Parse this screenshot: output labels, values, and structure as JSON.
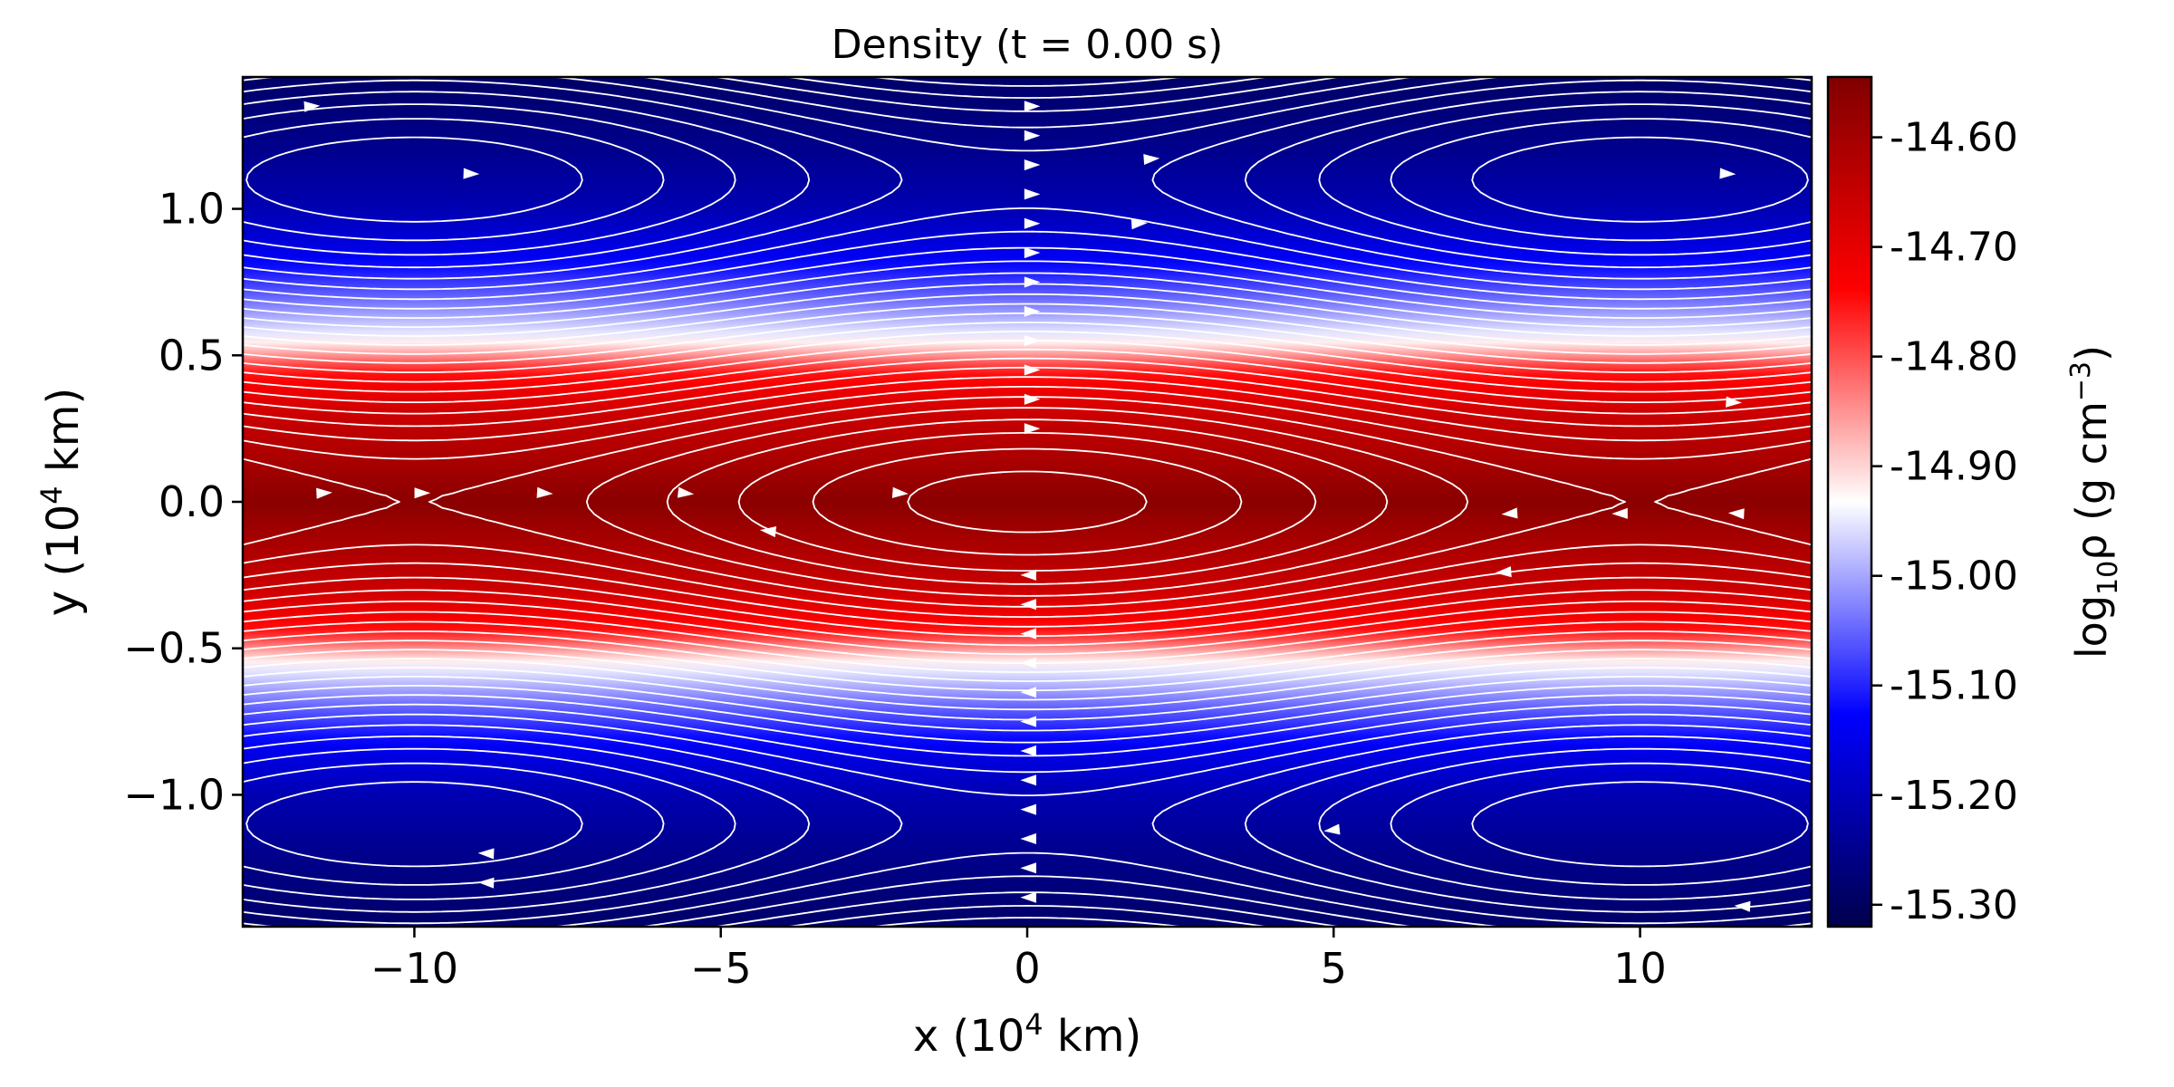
{
  "chart_data": {
    "type": "heatmap",
    "title": "Density (t = 0.00 s)",
    "xlabel": {
      "prefix": "x (10",
      "sup": "4",
      "suffix": " km)"
    },
    "ylabel": {
      "prefix": "y (10",
      "sup": "4",
      "suffix": " km)"
    },
    "colorbar_label": {
      "a": "log",
      "sub": "10",
      "b": "ρ (g cm",
      "sup": "−3",
      "c": ")"
    },
    "xlim": [
      -12.8,
      12.8
    ],
    "ylim": [
      -1.45,
      1.45
    ],
    "x_ticks": [
      {
        "value": -10,
        "label": "−10"
      },
      {
        "value": -5,
        "label": "−5"
      },
      {
        "value": 0,
        "label": "0"
      },
      {
        "value": 5,
        "label": "5"
      },
      {
        "value": 10,
        "label": "10"
      }
    ],
    "y_ticks": [
      {
        "value": 1.0,
        "label": "1.0"
      },
      {
        "value": 0.5,
        "label": "0.5"
      },
      {
        "value": 0.0,
        "label": "0.0"
      },
      {
        "value": -0.5,
        "label": "−0.5"
      },
      {
        "value": -1.0,
        "label": "−1.0"
      }
    ],
    "colorbar_range": [
      -15.32,
      -14.545
    ],
    "colorbar_ticks": [
      {
        "value": -14.6,
        "label": "-14.60"
      },
      {
        "value": -14.7,
        "label": "-14.70"
      },
      {
        "value": -14.8,
        "label": "-14.80"
      },
      {
        "value": -14.9,
        "label": "-14.90"
      },
      {
        "value": -15.0,
        "label": "-15.00"
      },
      {
        "value": -15.1,
        "label": "-15.10"
      },
      {
        "value": -15.2,
        "label": "-15.20"
      },
      {
        "value": -15.3,
        "label": "-15.30"
      }
    ],
    "colormap": "seismic",
    "density_profile": {
      "y": [
        0.0,
        0.3,
        0.45,
        0.5,
        0.55,
        0.7,
        0.85,
        1.0,
        1.2,
        1.45
      ],
      "log10_rho": [
        -14.56,
        -14.66,
        -14.76,
        -14.85,
        -14.93,
        -15.05,
        -15.15,
        -15.21,
        -15.25,
        -15.29
      ]
    },
    "streamline_color": "#ffffff",
    "grid": false
  }
}
